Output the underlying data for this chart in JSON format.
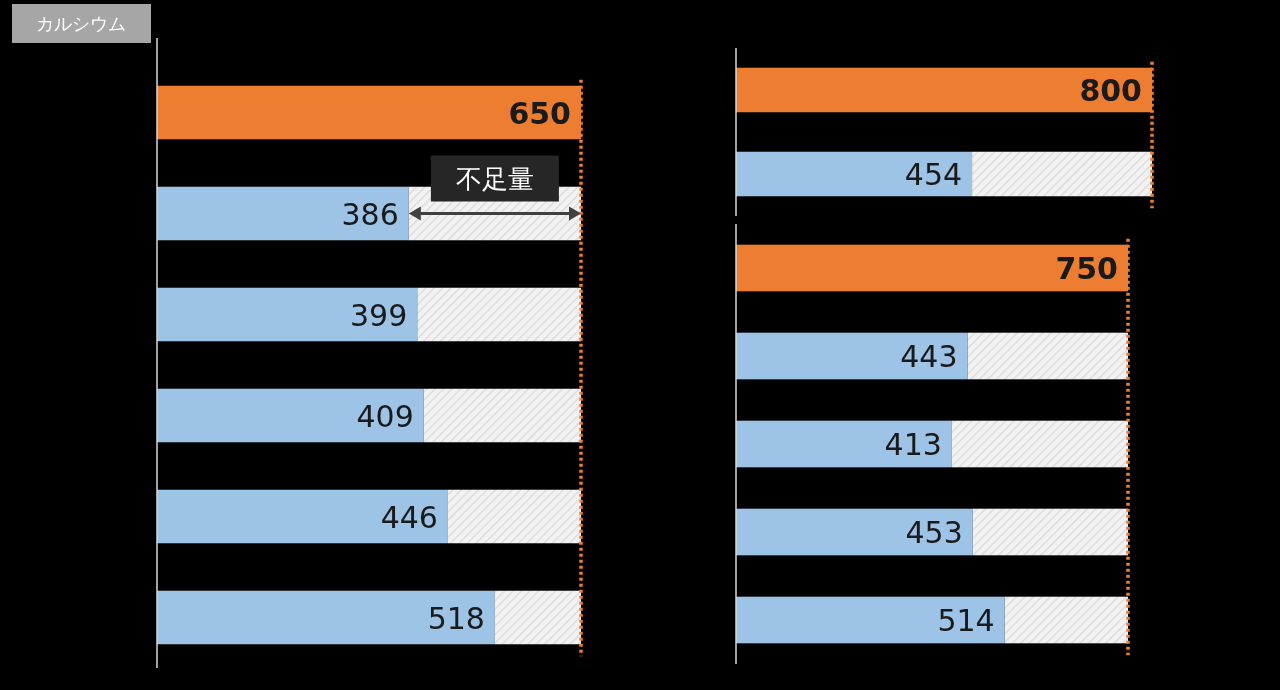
{
  "chart_data": [
    {
      "type": "bar",
      "title": "カルシウム",
      "orientation": "horizontal",
      "stacked": true,
      "categories": [
        null,
        null,
        null,
        null,
        null,
        null
      ],
      "xlim": [
        0,
        650
      ],
      "series": [
        {
          "colors": [
            "#ed7d31",
            "#9dc3e6",
            "#9dc3e6",
            "#9dc3e6",
            "#9dc3e6",
            "#9dc3e6"
          ],
          "values": [
            650,
            386,
            399,
            409,
            446,
            518
          ],
          "value_labels": [
            "650",
            "386",
            "399",
            "409",
            "446",
            "518"
          ]
        },
        {
          "color": "#d9d9d9",
          "values": [
            null,
            264,
            251,
            241,
            204,
            132
          ]
        }
      ],
      "ref_lines": [
        {
          "axis": "x",
          "value": 650,
          "color": "#ed7d31",
          "line_style": "dotted"
        }
      ],
      "annotations": [
        "不足量"
      ]
    },
    {
      "type": "bar",
      "orientation": "horizontal",
      "stacked": true,
      "categories": [
        null,
        null
      ],
      "xlim": [
        0,
        800
      ],
      "series": [
        {
          "colors": [
            "#ed7d31",
            "#9dc3e6"
          ],
          "values": [
            800,
            454
          ],
          "value_labels": [
            "800",
            "454"
          ]
        },
        {
          "color": "#d9d9d9",
          "values": [
            null,
            346
          ]
        }
      ],
      "ref_lines": [
        {
          "axis": "x",
          "value": 800,
          "color": "#ed7d31",
          "line_style": "dotted"
        }
      ]
    },
    {
      "type": "bar",
      "orientation": "horizontal",
      "stacked": true,
      "categories": [
        null,
        null,
        null,
        null,
        null
      ],
      "xlim": [
        0,
        750
      ],
      "series": [
        {
          "colors": [
            "#ed7d31",
            "#9dc3e6",
            "#9dc3e6",
            "#9dc3e6",
            "#9dc3e6"
          ],
          "values": [
            750,
            443,
            413,
            453,
            514
          ],
          "value_labels": [
            "750",
            "443",
            "413",
            "453",
            "514"
          ]
        },
        {
          "color": "#d9d9d9",
          "values": [
            null,
            307,
            337,
            297,
            236
          ]
        }
      ],
      "ref_lines": [
        {
          "axis": "x",
          "value": 750,
          "color": "#ed7d31",
          "line_style": "dotted"
        }
      ]
    }
  ]
}
